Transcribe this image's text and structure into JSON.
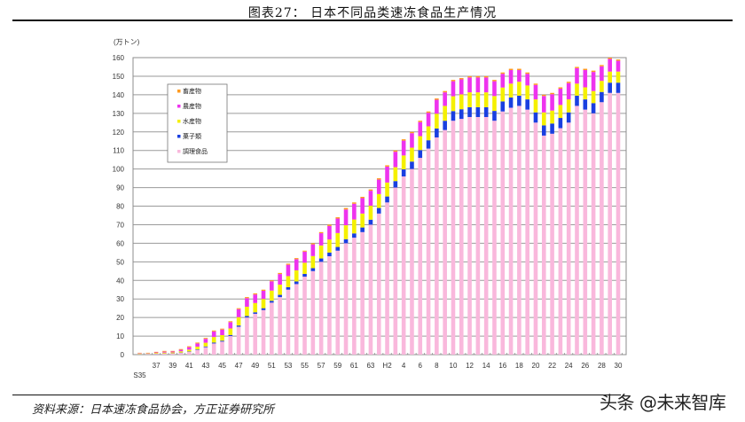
{
  "header": {
    "title": "图表27：  日本不同品类速冻食品生产情况"
  },
  "footer": {
    "source": "资料来源：日本速冻食品协会，方正证券研究所",
    "watermark": "头条 @未来智库"
  },
  "chart_data": {
    "type": "bar",
    "stacked": true,
    "title": "日本不同品类速冻食品生产情况",
    "xlabel": "",
    "ylabel": "(万トン)",
    "ylim": [
      0,
      160
    ],
    "yticks": [
      0,
      10,
      20,
      30,
      40,
      50,
      60,
      70,
      80,
      90,
      100,
      110,
      120,
      130,
      140,
      150,
      160
    ],
    "grid": true,
    "legend_position": "upper-left-inside",
    "categories": [
      "S35",
      "36",
      "37",
      "38",
      "39",
      "40",
      "41",
      "42",
      "43",
      "44",
      "45",
      "46",
      "47",
      "48",
      "49",
      "50",
      "51",
      "52",
      "53",
      "54",
      "55",
      "56",
      "57",
      "58",
      "59",
      "60",
      "61",
      "62",
      "63",
      "H1",
      "2",
      "3",
      "4",
      "5",
      "6",
      "7",
      "8",
      "9",
      "10",
      "11",
      "12",
      "13",
      "14",
      "15",
      "16",
      "17",
      "18",
      "19",
      "20",
      "21",
      "22",
      "23",
      "24",
      "25",
      "26",
      "27",
      "28",
      "29",
      "30"
    ],
    "xtick_labels": [
      "S35",
      "37",
      "39",
      "41",
      "43",
      "45",
      "47",
      "49",
      "51",
      "53",
      "55",
      "57",
      "59",
      "61",
      "63",
      "H2",
      "4",
      "6",
      "8",
      "10",
      "12",
      "14",
      "16",
      "18",
      "20",
      "22",
      "24",
      "26",
      "28",
      "30"
    ],
    "series": [
      {
        "name": "調理食品",
        "color": "#f9b8dc",
        "values": [
          0.2,
          0.3,
          0.4,
          0.5,
          0.6,
          0.9,
          1.5,
          2.5,
          4,
          6,
          7,
          10,
          15,
          20,
          22,
          24,
          28,
          31,
          35,
          38,
          42,
          45,
          50,
          53,
          56,
          60,
          63,
          66,
          70,
          76,
          82,
          90,
          96,
          100,
          106,
          111,
          117,
          121,
          126,
          127,
          128,
          128,
          128,
          126,
          131,
          133,
          134,
          132,
          125,
          118,
          119,
          122,
          125,
          134,
          132,
          130,
          136,
          141,
          141
        ]
      },
      {
        "name": "菓子類",
        "color": "#1a3fe0",
        "values": [
          0.1,
          0.1,
          0.1,
          0.1,
          0.1,
          0.2,
          0.2,
          0.3,
          0.4,
          0.5,
          0.5,
          0.6,
          0.7,
          0.8,
          0.8,
          1,
          1,
          1.2,
          1.3,
          1.4,
          1.5,
          1.6,
          1.8,
          2,
          2,
          2.2,
          2.3,
          2.5,
          2.7,
          3,
          3.2,
          3.5,
          3.8,
          4,
          4.2,
          4.5,
          4.8,
          5,
          5.2,
          5.2,
          5.3,
          5.3,
          5.3,
          5.3,
          5.4,
          5.5,
          5.5,
          5.5,
          5.5,
          5.5,
          5.5,
          5.5,
          5.5,
          5.5,
          5.5,
          5.5,
          5.5,
          5.5,
          5.5
        ]
      },
      {
        "name": "水産物",
        "color": "#f5f000",
        "values": [
          0.3,
          0.3,
          0.4,
          0.5,
          0.5,
          0.7,
          1,
          1.5,
          2,
          3,
          3,
          3.5,
          4.5,
          5,
          5,
          5,
          5.5,
          5.5,
          6,
          6,
          6,
          6.5,
          7,
          7,
          7.5,
          7.5,
          7.5,
          7.5,
          7.5,
          7.5,
          7.5,
          7.5,
          7.5,
          7.5,
          7.5,
          7.5,
          8,
          8,
          8,
          8,
          8,
          8,
          8,
          8,
          7.5,
          7.5,
          7.5,
          7.5,
          7,
          7,
          7,
          7,
          7,
          6.5,
          6.5,
          6.5,
          6,
          6,
          6
        ]
      },
      {
        "name": "農産物",
        "color": "#ee33ee",
        "values": [
          0.2,
          0.2,
          0.3,
          0.5,
          0.5,
          0.8,
          1.3,
          1.7,
          2.1,
          3,
          3,
          3.4,
          4.3,
          4.6,
          4.6,
          4.4,
          5,
          5.7,
          6.1,
          6,
          6,
          6.3,
          6.6,
          7.3,
          7.8,
          8.5,
          8.5,
          8.3,
          8.1,
          7.8,
          8.6,
          8.3,
          8.0,
          7.8,
          7.6,
          7.3,
          7.5,
          7.3,
          8.1,
          8.1,
          8.0,
          8.0,
          8.0,
          8.0,
          7.4,
          7.3,
          6.3,
          6.3,
          7.8,
          8.8,
          8.8,
          8.8,
          8.8,
          8.3,
          9.3,
          10.3,
          7.8,
          6.8,
          5.8
        ]
      },
      {
        "name": "畜産物",
        "color": "#ff9a1f",
        "values": [
          0.2,
          0.1,
          0.3,
          0.4,
          0.3,
          0.4,
          0.5,
          0.5,
          0.5,
          0.5,
          0.5,
          0.5,
          0.5,
          0.6,
          0.6,
          0.6,
          0.5,
          0.6,
          0.6,
          0.6,
          0.5,
          0.6,
          0.6,
          0.7,
          0.7,
          0.8,
          0.7,
          0.7,
          0.7,
          0.7,
          0.7,
          0.7,
          0.7,
          0.7,
          0.7,
          0.7,
          0.7,
          0.7,
          0.7,
          0.7,
          0.7,
          0.7,
          0.7,
          0.7,
          0.7,
          0.7,
          0.7,
          0.7,
          0.7,
          0.7,
          0.7,
          0.7,
          0.7,
          0.7,
          0.7,
          0.7,
          0.7,
          0.7,
          0.7
        ]
      }
    ]
  }
}
